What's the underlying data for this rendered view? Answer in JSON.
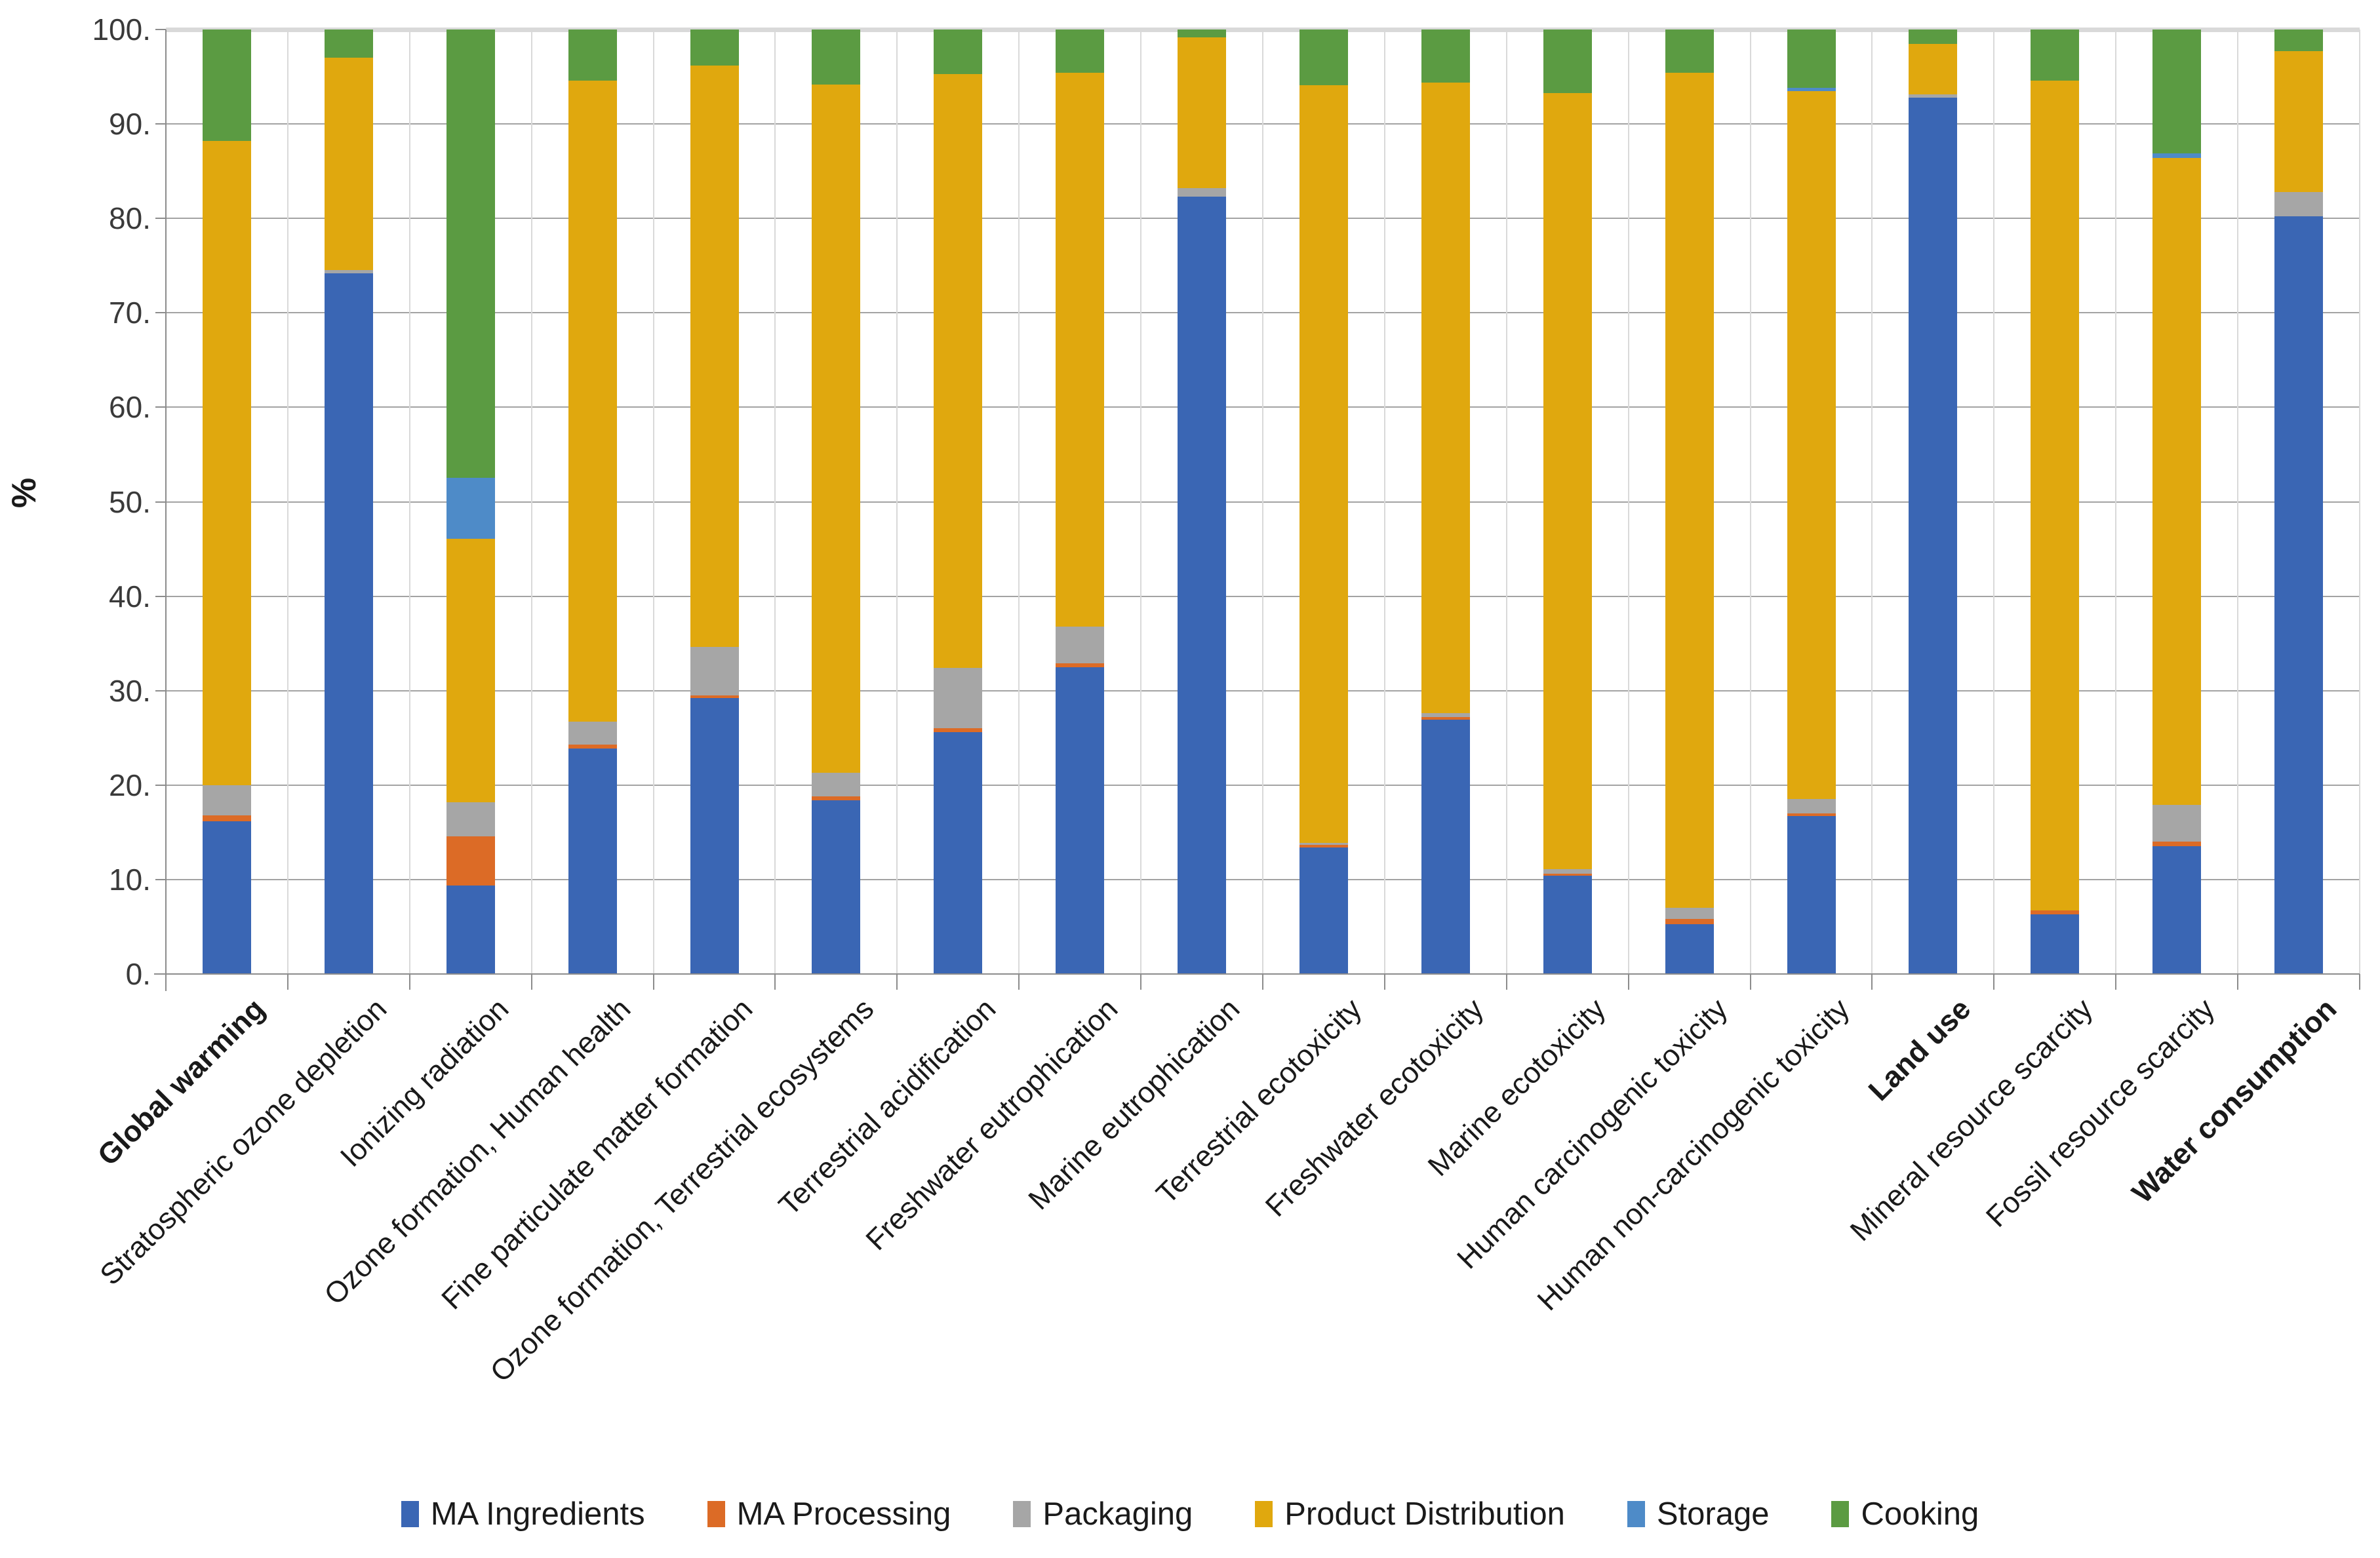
{
  "chart_data": {
    "type": "bar",
    "subtype": "stacked-100-percent",
    "title": "",
    "xlabel": "",
    "ylabel": "%",
    "ylim": [
      0,
      100
    ],
    "grid": true,
    "legend_position": "bottom",
    "y_ticks": [
      "100.",
      "90.",
      "80.",
      "70.",
      "60.",
      "50.",
      "40.",
      "30.",
      "20.",
      "10.",
      "0."
    ],
    "categories": [
      "Global warming",
      "Stratospheric ozone depletion",
      "Ionizing radiation",
      "Ozone formation, Human health",
      "Fine particulate matter formation",
      "Ozone formation, Terrestrial ecosystems",
      "Terrestrial acidification",
      "Freshwater eutrophication",
      "Marine eutrophication",
      "Terrestrial ecotoxicity",
      "Freshwater ecotoxicity",
      "Marine ecotoxicity",
      "Human carcinogenic toxicity",
      "Human non-carcinogenic toxicity",
      "Land use",
      "Mineral resource scarcity",
      "Fossil resource scarcity",
      "Water consumption"
    ],
    "bold_categories": [
      "Global warming",
      "Land use",
      "Water consumption"
    ],
    "series": [
      {
        "name": "MA Ingredients",
        "color": "#3a66b4",
        "values": [
          16.2,
          74.2,
          9.4,
          23.9,
          29.2,
          18.4,
          25.6,
          32.5,
          82.3,
          13.4,
          26.9,
          10.4,
          5.3,
          16.7,
          92.8,
          6.3,
          13.5,
          80.2
        ]
      },
      {
        "name": "MA Processing",
        "color": "#dc6b26",
        "values": [
          0.6,
          0,
          5.2,
          0.4,
          0.3,
          0.4,
          0.4,
          0.4,
          0,
          0.3,
          0.3,
          0.2,
          0.5,
          0.3,
          0,
          0.4,
          0.5,
          0
        ]
      },
      {
        "name": "Packaging",
        "color": "#a6a6a6",
        "values": [
          3.2,
          0.3,
          3.6,
          2.4,
          5.1,
          2.5,
          6.4,
          3.9,
          0.9,
          0.2,
          0.4,
          0.5,
          1.2,
          1.5,
          0.3,
          0,
          3.9,
          2.6
        ]
      },
      {
        "name": "Product Distribution",
        "color": "#e0a80e",
        "values": [
          68.2,
          22.5,
          27.9,
          67.9,
          61.6,
          72.9,
          62.9,
          58.6,
          16.0,
          80.2,
          66.8,
          82.2,
          88.4,
          75.0,
          5.4,
          87.9,
          68.5,
          14.9
        ]
      },
      {
        "name": "Storage",
        "color": "#4e8bc8",
        "values": [
          0,
          0,
          6.4,
          0,
          0,
          0,
          0,
          0,
          0,
          0,
          0,
          0,
          0,
          0.3,
          0,
          0,
          0.5,
          0
        ]
      },
      {
        "name": "Cooking",
        "color": "#5b9b42",
        "values": [
          11.8,
          3.0,
          47.5,
          5.4,
          3.8,
          5.8,
          4.7,
          4.6,
          0.8,
          5.9,
          5.6,
          6.7,
          4.6,
          6.2,
          1.5,
          5.4,
          13.1,
          2.3
        ]
      }
    ]
  }
}
